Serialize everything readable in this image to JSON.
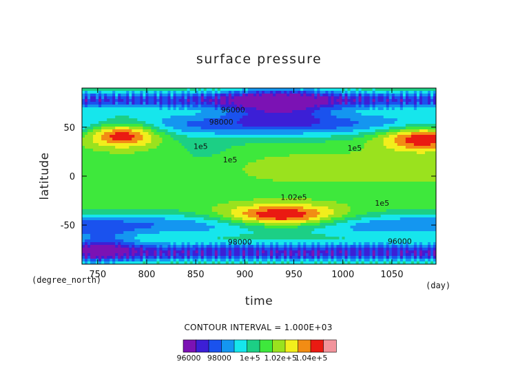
{
  "chart_data": {
    "type": "heatmap",
    "subtype": "filled-contour",
    "title": "surface pressure",
    "xlabel": "time",
    "ylabel": "latitude",
    "x_units": "(day)",
    "y_units": "(degree_north)",
    "xlim": [
      734,
      1095
    ],
    "ylim": [
      -90,
      90
    ],
    "xticks": [
      750,
      800,
      850,
      900,
      950,
      1000,
      1050
    ],
    "yticks": [
      -50,
      0,
      50
    ],
    "contour_interval_text": "CONTOUR INTERVAL = 1.000E+03",
    "levels": [
      95000,
      96000,
      97000,
      98000,
      99000,
      100000,
      101000,
      102000,
      103000,
      104000,
      105000
    ],
    "colors": [
      "#7b12b4",
      "#3c1fd6",
      "#1a52ee",
      "#1496f0",
      "#16e6ec",
      "#1ccf85",
      "#3ee83c",
      "#9ae21e",
      "#f2ee1c",
      "#f28c14",
      "#ea1a12",
      "#f2949c",
      "#ffffff"
    ],
    "colorbar_labels": [
      "96000",
      "98000",
      "1e+5",
      "1.02e+5",
      "1.04e+5"
    ],
    "contour_labels": [
      {
        "text": "96000",
        "x": 888,
        "y": 67
      },
      {
        "text": "98000",
        "x": 876,
        "y": 55
      },
      {
        "text": "1e5",
        "x": 855,
        "y": 30
      },
      {
        "text": "1e5",
        "x": 885,
        "y": 16
      },
      {
        "text": "1e5",
        "x": 1012,
        "y": 28
      },
      {
        "text": "1.02e5",
        "x": 950,
        "y": -22
      },
      {
        "text": "1e5",
        "x": 1040,
        "y": -28
      },
      {
        "text": "98000",
        "x": 895,
        "y": -68
      },
      {
        "text": "96000",
        "x": 1058,
        "y": -67
      }
    ],
    "field": {
      "background": 100500,
      "bands": [
        {
          "lat_peak": 53,
          "lat_width": 13,
          "amp": -3500
        },
        {
          "lat_peak": 78,
          "lat_width": 9,
          "amp": -4500
        },
        {
          "lat_peak": -50,
          "lat_width": 12,
          "amp": -3500
        },
        {
          "lat_peak": -78,
          "lat_width": 10,
          "amp": -5000
        }
      ],
      "highs": [
        {
          "day": 775,
          "lat": 44,
          "day_width": 38,
          "lat_width": 13,
          "amp": 5800
        },
        {
          "day": 1082,
          "lat": 40,
          "day_width": 45,
          "lat_width": 13,
          "amp": 5400
        },
        {
          "day": 938,
          "lat": -42,
          "day_width": 62,
          "lat_width": 12,
          "amp": 6300
        },
        {
          "day": 1010,
          "lat": 8,
          "day_width": 160,
          "lat_width": 16,
          "amp": 1200
        }
      ],
      "lows": [
        {
          "day": 935,
          "lat": 72,
          "day_width": 55,
          "lat_width": 20,
          "amp": -4000
        },
        {
          "day": 755,
          "lat": -70,
          "day_width": 35,
          "lat_width": 18,
          "amp": -2500
        },
        {
          "day": 860,
          "lat": 20,
          "day_width": 40,
          "lat_width": 25,
          "amp": -800
        }
      ]
    }
  }
}
